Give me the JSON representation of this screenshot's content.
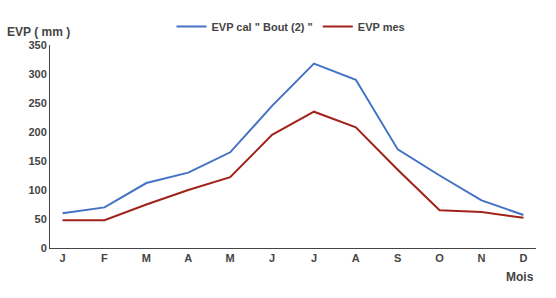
{
  "chart_data": {
    "type": "line",
    "x_label": "Mois",
    "y_label": "EVP ( mm )",
    "categories": [
      "J",
      "F",
      "M",
      "A",
      "M",
      "J",
      "J",
      "A",
      "S",
      "O",
      "N",
      "D"
    ],
    "series": [
      {
        "name": "EVP cal \" Bout (2) \"",
        "color": "#4472C4",
        "values": [
          60,
          70,
          112,
          130,
          165,
          245,
          318,
          290,
          170,
          125,
          82,
          57
        ]
      },
      {
        "name": "EVP mes",
        "color": "#A0231A",
        "values": [
          48,
          48,
          75,
          100,
          122,
          195,
          235,
          208,
          135,
          65,
          62,
          52
        ]
      }
    ],
    "ylim": [
      0,
      350
    ],
    "yticks": [
      0,
      50,
      100,
      150,
      200,
      250,
      300,
      350
    ],
    "grid": false,
    "legend": "top"
  }
}
